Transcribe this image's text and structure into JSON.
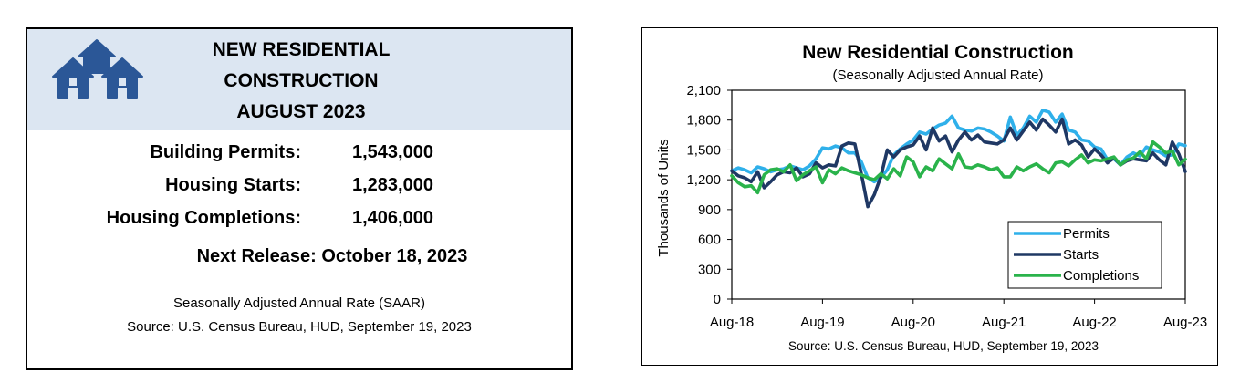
{
  "summary": {
    "title_lines": [
      "NEW RESIDENTIAL",
      "CONSTRUCTION",
      "AUGUST 2023"
    ],
    "stats": [
      {
        "label": "Building Permits:",
        "value": "1,543,000"
      },
      {
        "label": "Housing Starts:",
        "value": "1,283,000"
      },
      {
        "label": "Housing Completions:",
        "value": "1,406,000"
      }
    ],
    "next_release": "Next Release:  October 18, 2023",
    "footnote_1": "Seasonally Adjusted Annual Rate (SAAR)",
    "footnote_2": "Source:  U.S. Census Bureau, HUD, September 19, 2023",
    "logo_icon": "houses-icon",
    "header_color": "#dce6f2",
    "logo_color": "#2b5797"
  },
  "chart_data": {
    "type": "line",
    "title": "New Residential Construction",
    "subtitle": "(Seasonally Adjusted Annual Rate)",
    "ylabel": "Thousands of Units",
    "source": "Source:  U.S. Census Bureau, HUD, September 19, 2023",
    "ylim": [
      0,
      2100
    ],
    "yticks": [
      0,
      300,
      600,
      900,
      1200,
      1500,
      1800,
      2100
    ],
    "ytick_labels": [
      "0",
      "300",
      "600",
      "900",
      "1,200",
      "1,500",
      "1,800",
      "2,100"
    ],
    "xticks": [
      "Aug-18",
      "Aug-19",
      "Aug-20",
      "Aug-21",
      "Aug-22",
      "Aug-23"
    ],
    "x_start": "Aug-18",
    "x_end": "Aug-23",
    "legend_position": "bottom-right",
    "grid": false,
    "series": [
      {
        "name": "Permits",
        "color": "#2fb0ea",
        "values": [
          1290,
          1320,
          1300,
          1270,
          1330,
          1310,
          1280,
          1300,
          1310,
          1340,
          1320,
          1300,
          1340,
          1410,
          1520,
          1510,
          1540,
          1520,
          1470,
          1470,
          1380,
          1220,
          1180,
          1220,
          1300,
          1450,
          1510,
          1560,
          1600,
          1680,
          1660,
          1710,
          1750,
          1770,
          1840,
          1720,
          1700,
          1690,
          1720,
          1710,
          1680,
          1640,
          1590,
          1830,
          1650,
          1720,
          1840,
          1780,
          1900,
          1880,
          1780,
          1860,
          1700,
          1680,
          1600,
          1590,
          1530,
          1510,
          1400,
          1410,
          1350,
          1430,
          1470,
          1440,
          1530,
          1500,
          1480,
          1440,
          1450,
          1560,
          1543
        ]
      },
      {
        "name": "Starts",
        "color": "#1f3864",
        "values": [
          1290,
          1240,
          1220,
          1180,
          1280,
          1120,
          1180,
          1250,
          1280,
          1270,
          1320,
          1230,
          1260,
          1370,
          1320,
          1350,
          1340,
          1540,
          1570,
          1560,
          1260,
          930,
          1050,
          1230,
          1500,
          1430,
          1500,
          1530,
          1550,
          1640,
          1500,
          1720,
          1590,
          1640,
          1480,
          1600,
          1680,
          1600,
          1650,
          1580,
          1570,
          1560,
          1600,
          1720,
          1600,
          1690,
          1780,
          1700,
          1810,
          1750,
          1680,
          1810,
          1560,
          1600,
          1550,
          1430,
          1510,
          1450,
          1370,
          1420,
          1350,
          1390,
          1410,
          1400,
          1390,
          1470,
          1400,
          1350,
          1580,
          1460,
          1283
        ]
      },
      {
        "name": "Completions",
        "color": "#2ab34b",
        "values": [
          1240,
          1170,
          1130,
          1140,
          1070,
          1250,
          1300,
          1310,
          1280,
          1350,
          1190,
          1250,
          1290,
          1330,
          1170,
          1300,
          1260,
          1320,
          1290,
          1270,
          1250,
          1220,
          1200,
          1260,
          1210,
          1310,
          1240,
          1430,
          1380,
          1230,
          1330,
          1290,
          1410,
          1360,
          1310,
          1460,
          1330,
          1320,
          1350,
          1330,
          1300,
          1320,
          1230,
          1230,
          1330,
          1290,
          1330,
          1360,
          1310,
          1270,
          1370,
          1380,
          1340,
          1400,
          1450,
          1370,
          1400,
          1390,
          1410,
          1430,
          1350,
          1400,
          1420,
          1480,
          1410,
          1580,
          1530,
          1470,
          1490,
          1350,
          1406
        ]
      }
    ]
  }
}
